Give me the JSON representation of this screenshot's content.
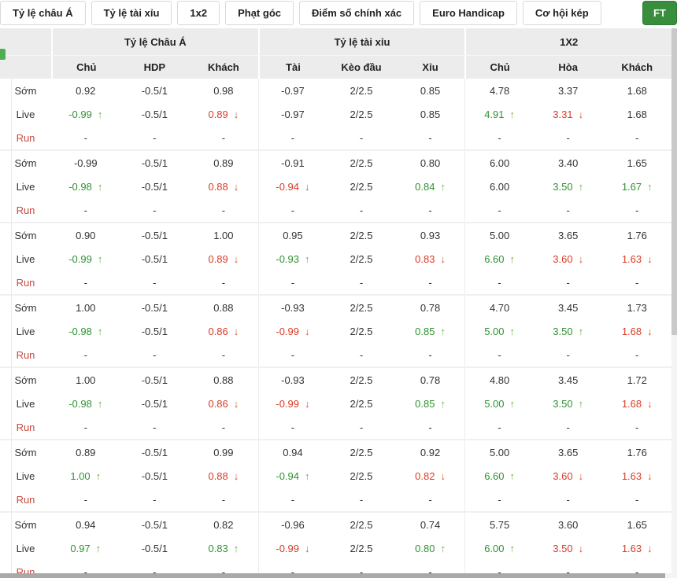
{
  "tabs": [
    "Tỷ lệ châu Á",
    "Tỷ lệ tài xỉu",
    "1x2",
    "Phạt góc",
    "Điểm số chính xác",
    "Euro Handicap",
    "Cơ hội kép"
  ],
  "ft_label": "FT",
  "colors": {
    "accent_green": "#388e3c",
    "odds_up": "#2f9331",
    "odds_down": "#d93b26",
    "run_label": "#c9493f"
  },
  "table": {
    "groups": [
      {
        "label": "Tỷ lệ Châu Á",
        "cols": [
          "Chủ",
          "HDP",
          "Khách"
        ]
      },
      {
        "label": "Tỷ lệ tài xỉu",
        "cols": [
          "Tài",
          "Kèo đầu",
          "Xỉu"
        ]
      },
      {
        "label": "1X2",
        "cols": [
          "Chủ",
          "Hòa",
          "Khách"
        ]
      }
    ],
    "row_labels": [
      "Sớm",
      "Live",
      "Run"
    ],
    "blocks": [
      [
        [
          {
            "v": "0.92"
          },
          {
            "v": "-0.5/1"
          },
          {
            "v": "0.98"
          },
          {
            "v": "-0.97"
          },
          {
            "v": "2/2.5"
          },
          {
            "v": "0.85"
          },
          {
            "v": "4.78"
          },
          {
            "v": "3.37"
          },
          {
            "v": "1.68"
          }
        ],
        [
          {
            "v": "-0.99",
            "c": "g",
            "a": "u"
          },
          {
            "v": "-0.5/1"
          },
          {
            "v": "0.89",
            "c": "r",
            "a": "d"
          },
          {
            "v": "-0.97"
          },
          {
            "v": "2/2.5"
          },
          {
            "v": "0.85"
          },
          {
            "v": "4.91",
            "c": "g",
            "a": "u"
          },
          {
            "v": "3.31",
            "c": "r",
            "a": "d"
          },
          {
            "v": "1.68"
          }
        ],
        [
          {
            "v": "-"
          },
          {
            "v": "-"
          },
          {
            "v": "-"
          },
          {
            "v": "-"
          },
          {
            "v": "-"
          },
          {
            "v": "-"
          },
          {
            "v": "-"
          },
          {
            "v": "-"
          },
          {
            "v": "-"
          }
        ]
      ],
      [
        [
          {
            "v": "-0.99"
          },
          {
            "v": "-0.5/1"
          },
          {
            "v": "0.89"
          },
          {
            "v": "-0.91"
          },
          {
            "v": "2/2.5"
          },
          {
            "v": "0.80"
          },
          {
            "v": "6.00"
          },
          {
            "v": "3.40"
          },
          {
            "v": "1.65"
          }
        ],
        [
          {
            "v": "-0.98",
            "c": "g",
            "a": "u"
          },
          {
            "v": "-0.5/1"
          },
          {
            "v": "0.88",
            "c": "r",
            "a": "d"
          },
          {
            "v": "-0.94",
            "c": "r",
            "a": "d"
          },
          {
            "v": "2/2.5"
          },
          {
            "v": "0.84",
            "c": "g",
            "a": "u"
          },
          {
            "v": "6.00"
          },
          {
            "v": "3.50",
            "c": "g",
            "a": "u"
          },
          {
            "v": "1.67",
            "c": "g",
            "a": "u"
          }
        ],
        [
          {
            "v": "-"
          },
          {
            "v": "-"
          },
          {
            "v": "-"
          },
          {
            "v": "-"
          },
          {
            "v": "-"
          },
          {
            "v": "-"
          },
          {
            "v": "-"
          },
          {
            "v": "-"
          },
          {
            "v": "-"
          }
        ]
      ],
      [
        [
          {
            "v": "0.90"
          },
          {
            "v": "-0.5/1"
          },
          {
            "v": "1.00"
          },
          {
            "v": "0.95"
          },
          {
            "v": "2/2.5"
          },
          {
            "v": "0.93"
          },
          {
            "v": "5.00"
          },
          {
            "v": "3.65"
          },
          {
            "v": "1.76"
          }
        ],
        [
          {
            "v": "-0.99",
            "c": "g",
            "a": "u"
          },
          {
            "v": "-0.5/1"
          },
          {
            "v": "0.89",
            "c": "r",
            "a": "d"
          },
          {
            "v": "-0.93",
            "c": "g",
            "a": "u"
          },
          {
            "v": "2/2.5"
          },
          {
            "v": "0.83",
            "c": "r",
            "a": "d"
          },
          {
            "v": "6.60",
            "c": "g",
            "a": "u"
          },
          {
            "v": "3.60",
            "c": "r",
            "a": "d"
          },
          {
            "v": "1.63",
            "c": "r",
            "a": "d"
          }
        ],
        [
          {
            "v": "-"
          },
          {
            "v": "-"
          },
          {
            "v": "-"
          },
          {
            "v": "-"
          },
          {
            "v": "-"
          },
          {
            "v": "-"
          },
          {
            "v": "-"
          },
          {
            "v": "-"
          },
          {
            "v": "-"
          }
        ]
      ],
      [
        [
          {
            "v": "1.00"
          },
          {
            "v": "-0.5/1"
          },
          {
            "v": "0.88"
          },
          {
            "v": "-0.93"
          },
          {
            "v": "2/2.5"
          },
          {
            "v": "0.78"
          },
          {
            "v": "4.70"
          },
          {
            "v": "3.45"
          },
          {
            "v": "1.73"
          }
        ],
        [
          {
            "v": "-0.98",
            "c": "g",
            "a": "u"
          },
          {
            "v": "-0.5/1"
          },
          {
            "v": "0.86",
            "c": "r",
            "a": "d"
          },
          {
            "v": "-0.99",
            "c": "r",
            "a": "d"
          },
          {
            "v": "2/2.5"
          },
          {
            "v": "0.85",
            "c": "g",
            "a": "u"
          },
          {
            "v": "5.00",
            "c": "g",
            "a": "u"
          },
          {
            "v": "3.50",
            "c": "g",
            "a": "u"
          },
          {
            "v": "1.68",
            "c": "r",
            "a": "d"
          }
        ],
        [
          {
            "v": "-"
          },
          {
            "v": "-"
          },
          {
            "v": "-"
          },
          {
            "v": "-"
          },
          {
            "v": "-"
          },
          {
            "v": "-"
          },
          {
            "v": "-"
          },
          {
            "v": "-"
          },
          {
            "v": "-"
          }
        ]
      ],
      [
        [
          {
            "v": "1.00"
          },
          {
            "v": "-0.5/1"
          },
          {
            "v": "0.88"
          },
          {
            "v": "-0.93"
          },
          {
            "v": "2/2.5"
          },
          {
            "v": "0.78"
          },
          {
            "v": "4.80"
          },
          {
            "v": "3.45"
          },
          {
            "v": "1.72"
          }
        ],
        [
          {
            "v": "-0.98",
            "c": "g",
            "a": "u"
          },
          {
            "v": "-0.5/1"
          },
          {
            "v": "0.86",
            "c": "r",
            "a": "d"
          },
          {
            "v": "-0.99",
            "c": "r",
            "a": "d"
          },
          {
            "v": "2/2.5"
          },
          {
            "v": "0.85",
            "c": "g",
            "a": "u"
          },
          {
            "v": "5.00",
            "c": "g",
            "a": "u"
          },
          {
            "v": "3.50",
            "c": "g",
            "a": "u"
          },
          {
            "v": "1.68",
            "c": "r",
            "a": "d"
          }
        ],
        [
          {
            "v": "-"
          },
          {
            "v": "-"
          },
          {
            "v": "-"
          },
          {
            "v": "-"
          },
          {
            "v": "-"
          },
          {
            "v": "-"
          },
          {
            "v": "-"
          },
          {
            "v": "-"
          },
          {
            "v": "-"
          }
        ]
      ],
      [
        [
          {
            "v": "0.89"
          },
          {
            "v": "-0.5/1"
          },
          {
            "v": "0.99"
          },
          {
            "v": "0.94"
          },
          {
            "v": "2/2.5"
          },
          {
            "v": "0.92"
          },
          {
            "v": "5.00"
          },
          {
            "v": "3.65"
          },
          {
            "v": "1.76"
          }
        ],
        [
          {
            "v": "1.00",
            "c": "g",
            "a": "u"
          },
          {
            "v": "-0.5/1"
          },
          {
            "v": "0.88",
            "c": "r",
            "a": "d"
          },
          {
            "v": "-0.94",
            "c": "g",
            "a": "u"
          },
          {
            "v": "2/2.5"
          },
          {
            "v": "0.82",
            "c": "r",
            "a": "d"
          },
          {
            "v": "6.60",
            "c": "g",
            "a": "u"
          },
          {
            "v": "3.60",
            "c": "r",
            "a": "d"
          },
          {
            "v": "1.63",
            "c": "r",
            "a": "d"
          }
        ],
        [
          {
            "v": "-"
          },
          {
            "v": "-"
          },
          {
            "v": "-"
          },
          {
            "v": "-"
          },
          {
            "v": "-"
          },
          {
            "v": "-"
          },
          {
            "v": "-"
          },
          {
            "v": "-"
          },
          {
            "v": "-"
          }
        ]
      ],
      [
        [
          {
            "v": "0.94"
          },
          {
            "v": "-0.5/1"
          },
          {
            "v": "0.82"
          },
          {
            "v": "-0.96"
          },
          {
            "v": "2/2.5"
          },
          {
            "v": "0.74"
          },
          {
            "v": "5.75"
          },
          {
            "v": "3.60"
          },
          {
            "v": "1.65"
          }
        ],
        [
          {
            "v": "0.97",
            "c": "g",
            "a": "u"
          },
          {
            "v": "-0.5/1"
          },
          {
            "v": "0.83",
            "c": "g",
            "a": "u"
          },
          {
            "v": "-0.99",
            "c": "r",
            "a": "d"
          },
          {
            "v": "2/2.5"
          },
          {
            "v": "0.80",
            "c": "g",
            "a": "u"
          },
          {
            "v": "6.00",
            "c": "g",
            "a": "u"
          },
          {
            "v": "3.50",
            "c": "r",
            "a": "d"
          },
          {
            "v": "1.63",
            "c": "r",
            "a": "d"
          }
        ],
        [
          {
            "v": "-"
          },
          {
            "v": "-"
          },
          {
            "v": "-"
          },
          {
            "v": "-"
          },
          {
            "v": "-"
          },
          {
            "v": "-"
          },
          {
            "v": "-"
          },
          {
            "v": "-"
          },
          {
            "v": "-"
          }
        ]
      ]
    ]
  }
}
